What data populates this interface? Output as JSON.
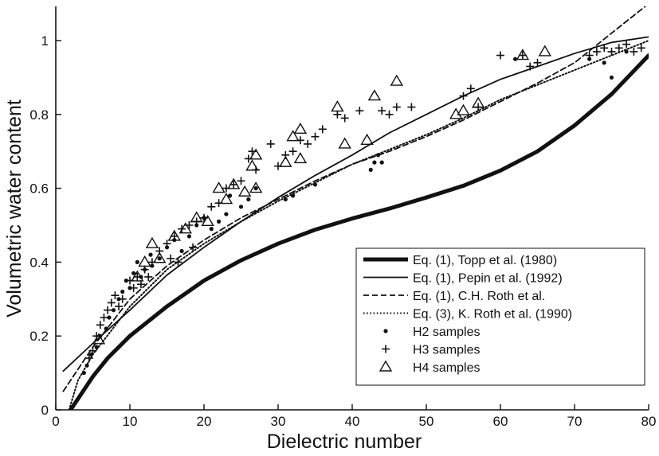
{
  "chart_data": {
    "type": "scatter",
    "title": "",
    "xlabel": "Dielectric number",
    "ylabel": "Volumetric water content",
    "xlim": [
      0,
      80
    ],
    "ylim": [
      0,
      1.1
    ],
    "xticks": [
      0,
      10,
      20,
      30,
      40,
      50,
      60,
      70,
      80
    ],
    "yticks": [
      0,
      0.2,
      0.4,
      0.6,
      0.8,
      1
    ],
    "ytick_labels": [
      "0",
      "0.2",
      "0.4",
      "0.6",
      "0.8",
      "1"
    ],
    "legend_position": "bottom-right",
    "grid": false,
    "series": [
      {
        "name": "Eq. (1), Topp et al. (1980)",
        "kind": "line",
        "style": "thick-solid",
        "x": [
          2,
          3,
          5,
          7,
          10,
          15,
          20,
          25,
          30,
          35,
          40,
          45,
          50,
          55,
          60,
          65,
          70,
          75,
          80
        ],
        "y": [
          0.0,
          0.03,
          0.09,
          0.14,
          0.2,
          0.28,
          0.35,
          0.405,
          0.45,
          0.488,
          0.518,
          0.545,
          0.575,
          0.607,
          0.648,
          0.7,
          0.77,
          0.855,
          0.96
        ]
      },
      {
        "name": "Eq. (1), Pepin et al. (1992)",
        "kind": "line",
        "style": "solid",
        "x": [
          1,
          5,
          10,
          15,
          20,
          25,
          30,
          35,
          40,
          45,
          50,
          55,
          60,
          65,
          70,
          75,
          80
        ],
        "y": [
          0.105,
          0.18,
          0.27,
          0.365,
          0.44,
          0.51,
          0.575,
          0.635,
          0.69,
          0.75,
          0.8,
          0.85,
          0.895,
          0.93,
          0.965,
          0.995,
          1.01
        ]
      },
      {
        "name": "Eq. (1), C.H. Roth et al.",
        "kind": "line",
        "style": "dashed",
        "x": [
          1,
          5,
          10,
          15,
          20,
          25,
          30,
          35,
          40,
          45,
          50,
          55,
          60,
          65,
          70,
          75,
          80
        ],
        "y": [
          0.05,
          0.17,
          0.3,
          0.39,
          0.46,
          0.52,
          0.57,
          0.62,
          0.665,
          0.7,
          0.74,
          0.785,
          0.835,
          0.885,
          0.94,
          1.02,
          1.1
        ]
      },
      {
        "name": "Eq. (3), K. Roth et al. (1990)",
        "kind": "line",
        "style": "dotted",
        "x": [
          1.8,
          3,
          5,
          10,
          15,
          20,
          25,
          30,
          35,
          40,
          45,
          50,
          55,
          60,
          65,
          70,
          75,
          80
        ],
        "y": [
          0.0,
          0.08,
          0.15,
          0.28,
          0.38,
          0.45,
          0.51,
          0.565,
          0.615,
          0.665,
          0.705,
          0.745,
          0.79,
          0.84,
          0.88,
          0.92,
          0.96,
          1.0
        ]
      },
      {
        "name": "H2 samples",
        "kind": "points",
        "marker": "dot",
        "points": [
          [
            3.8,
            0.1
          ],
          [
            4.2,
            0.12
          ],
          [
            4.8,
            0.15
          ],
          [
            5.5,
            0.17
          ],
          [
            6,
            0.2
          ],
          [
            6.8,
            0.22
          ],
          [
            7.2,
            0.25
          ],
          [
            7.8,
            0.27
          ],
          [
            8.5,
            0.3
          ],
          [
            9,
            0.32
          ],
          [
            9.5,
            0.35
          ],
          [
            10,
            0.33
          ],
          [
            10.5,
            0.37
          ],
          [
            11,
            0.4
          ],
          [
            11.5,
            0.36
          ],
          [
            12,
            0.38
          ],
          [
            12.8,
            0.42
          ],
          [
            13,
            0.39
          ],
          [
            14,
            0.41
          ],
          [
            15,
            0.44
          ],
          [
            16,
            0.46
          ],
          [
            17,
            0.43
          ],
          [
            18,
            0.47
          ],
          [
            19,
            0.5
          ],
          [
            20,
            0.52
          ],
          [
            21,
            0.49
          ],
          [
            22,
            0.51
          ],
          [
            23,
            0.53
          ],
          [
            23.5,
            0.58
          ],
          [
            25,
            0.55
          ],
          [
            26,
            0.57
          ],
          [
            27,
            0.6
          ],
          [
            31,
            0.57
          ],
          [
            32,
            0.58
          ],
          [
            35,
            0.61
          ],
          [
            42.5,
            0.65
          ],
          [
            43,
            0.67
          ],
          [
            44,
            0.67
          ],
          [
            43.5,
            0.69
          ],
          [
            62,
            0.95
          ],
          [
            72,
            0.95
          ],
          [
            74,
            0.94
          ],
          [
            75,
            0.9
          ],
          [
            77,
            0.97
          ]
        ]
      },
      {
        "name": "H3 samples",
        "kind": "points",
        "marker": "plus",
        "points": [
          [
            4.5,
            0.14
          ],
          [
            5,
            0.16
          ],
          [
            5.5,
            0.2
          ],
          [
            6,
            0.23
          ],
          [
            6.5,
            0.25
          ],
          [
            7,
            0.27
          ],
          [
            7.5,
            0.29
          ],
          [
            8,
            0.31
          ],
          [
            8.5,
            0.28
          ],
          [
            9,
            0.3
          ],
          [
            10,
            0.35
          ],
          [
            10.5,
            0.33
          ],
          [
            11,
            0.36
          ],
          [
            11.5,
            0.34
          ],
          [
            12,
            0.38
          ],
          [
            12.5,
            0.36
          ],
          [
            13,
            0.4
          ],
          [
            14,
            0.43
          ],
          [
            15,
            0.45
          ],
          [
            15.5,
            0.41
          ],
          [
            16,
            0.47
          ],
          [
            16.5,
            0.4
          ],
          [
            17,
            0.49
          ],
          [
            18,
            0.5
          ],
          [
            18.5,
            0.44
          ],
          [
            19,
            0.51
          ],
          [
            20,
            0.52
          ],
          [
            21,
            0.55
          ],
          [
            22,
            0.56
          ],
          [
            23,
            0.6
          ],
          [
            24,
            0.61
          ],
          [
            25,
            0.62
          ],
          [
            26,
            0.68
          ],
          [
            26.5,
            0.7
          ],
          [
            27,
            0.65
          ],
          [
            29,
            0.72
          ],
          [
            30,
            0.66
          ],
          [
            31,
            0.69
          ],
          [
            32,
            0.7
          ],
          [
            33,
            0.73
          ],
          [
            34,
            0.72
          ],
          [
            35,
            0.74
          ],
          [
            36,
            0.76
          ],
          [
            38,
            0.8
          ],
          [
            39,
            0.79
          ],
          [
            41,
            0.81
          ],
          [
            44,
            0.81
          ],
          [
            45,
            0.8
          ],
          [
            46,
            0.82
          ],
          [
            48,
            0.82
          ],
          [
            55,
            0.85
          ],
          [
            56,
            0.87
          ],
          [
            57,
            0.82
          ],
          [
            60,
            0.96
          ],
          [
            63,
            0.96
          ],
          [
            64,
            0.93
          ],
          [
            65,
            0.94
          ],
          [
            72,
            0.96
          ],
          [
            73,
            0.97
          ],
          [
            74,
            0.98
          ],
          [
            75,
            0.97
          ],
          [
            76,
            0.98
          ],
          [
            77,
            0.99
          ],
          [
            78,
            0.97
          ],
          [
            79,
            0.98
          ]
        ]
      },
      {
        "name": "H4 samples",
        "kind": "points",
        "marker": "triangle",
        "points": [
          [
            5.8,
            0.19
          ],
          [
            11,
            0.36
          ],
          [
            12,
            0.4
          ],
          [
            13,
            0.45
          ],
          [
            14,
            0.41
          ],
          [
            16,
            0.47
          ],
          [
            17.5,
            0.49
          ],
          [
            19,
            0.52
          ],
          [
            20.5,
            0.51
          ],
          [
            22,
            0.6
          ],
          [
            23,
            0.57
          ],
          [
            24,
            0.61
          ],
          [
            25.5,
            0.59
          ],
          [
            26.5,
            0.66
          ],
          [
            27,
            0.69
          ],
          [
            27,
            0.6
          ],
          [
            31,
            0.67
          ],
          [
            32,
            0.74
          ],
          [
            33,
            0.68
          ],
          [
            33,
            0.76
          ],
          [
            38,
            0.82
          ],
          [
            39,
            0.72
          ],
          [
            42,
            0.73
          ],
          [
            43,
            0.85
          ],
          [
            46,
            0.89
          ],
          [
            54,
            0.8
          ],
          [
            55,
            0.81
          ],
          [
            57,
            0.83
          ],
          [
            63,
            0.96
          ],
          [
            66,
            0.97
          ]
        ]
      }
    ]
  }
}
